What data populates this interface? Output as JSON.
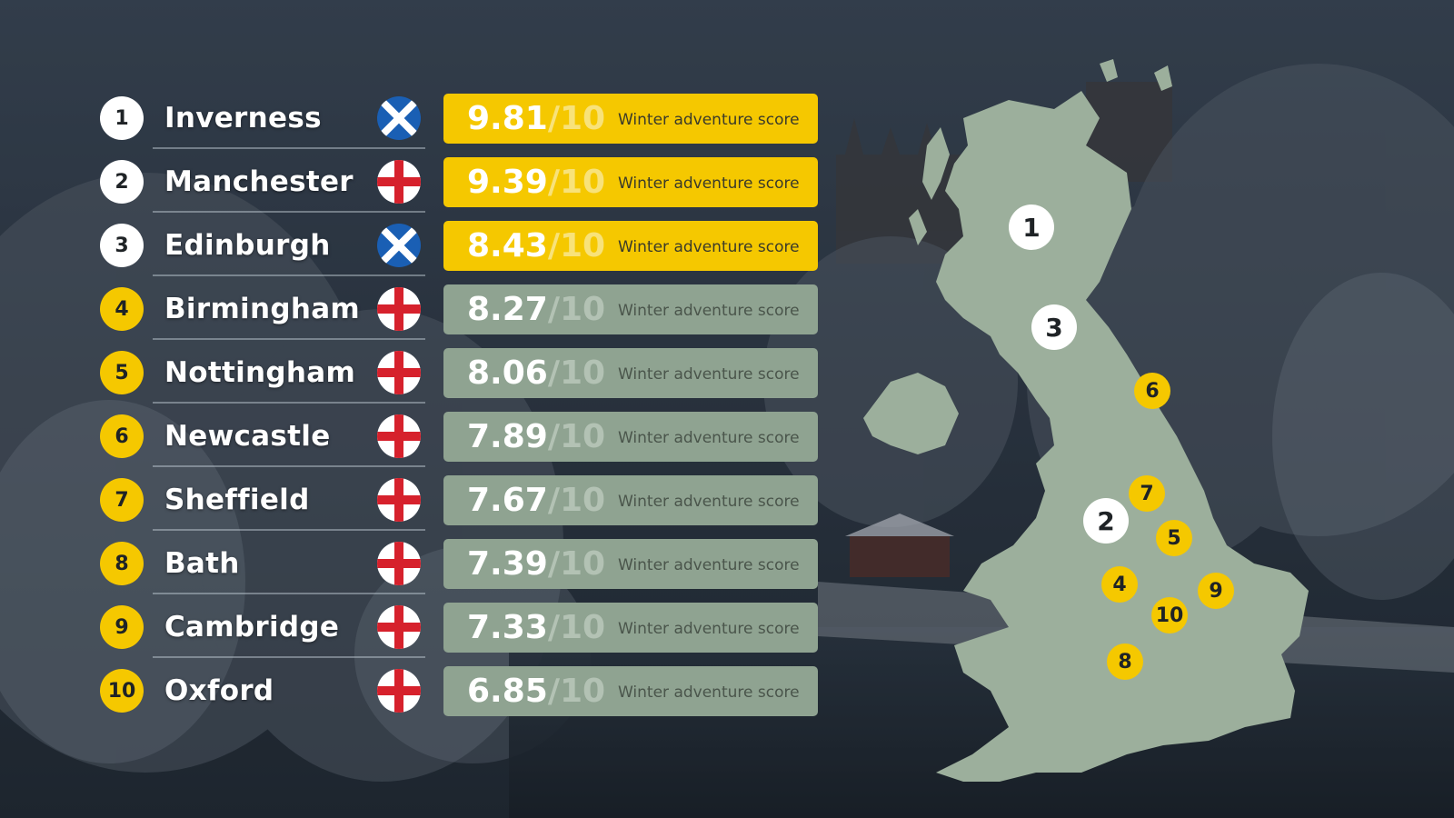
{
  "caption": "Winter adventure score",
  "out_of": "/10",
  "rankings": [
    {
      "rank": "1",
      "city": "Inverness",
      "flag": "scotland-flag",
      "score": "9.81",
      "highlight": true
    },
    {
      "rank": "2",
      "city": "Manchester",
      "flag": "england-flag",
      "score": "9.39",
      "highlight": true
    },
    {
      "rank": "3",
      "city": "Edinburgh",
      "flag": "scotland-flag",
      "score": "8.43",
      "highlight": true
    },
    {
      "rank": "4",
      "city": "Birmingham",
      "flag": "england-flag",
      "score": "8.27",
      "highlight": false
    },
    {
      "rank": "5",
      "city": "Nottingham",
      "flag": "england-flag",
      "score": "8.06",
      "highlight": false
    },
    {
      "rank": "6",
      "city": "Newcastle",
      "flag": "england-flag",
      "score": "7.89",
      "highlight": false
    },
    {
      "rank": "7",
      "city": "Sheffield",
      "flag": "england-flag",
      "score": "7.67",
      "highlight": false
    },
    {
      "rank": "8",
      "city": "Bath",
      "flag": "england-flag",
      "score": "7.39",
      "highlight": false
    },
    {
      "rank": "9",
      "city": "Cambridge",
      "flag": "england-flag",
      "score": "7.33",
      "highlight": false
    },
    {
      "rank": "10",
      "city": "Oxford",
      "flag": "england-flag",
      "score": "6.85",
      "highlight": false
    }
  ],
  "colors": {
    "gold": "#f5c800",
    "grey_box": "#8fa391",
    "map_land": "#9caf9c",
    "white": "#ffffff"
  },
  "map_pins": [
    "1",
    "3",
    "6",
    "2",
    "7",
    "5",
    "4",
    "9",
    "10",
    "8"
  ]
}
